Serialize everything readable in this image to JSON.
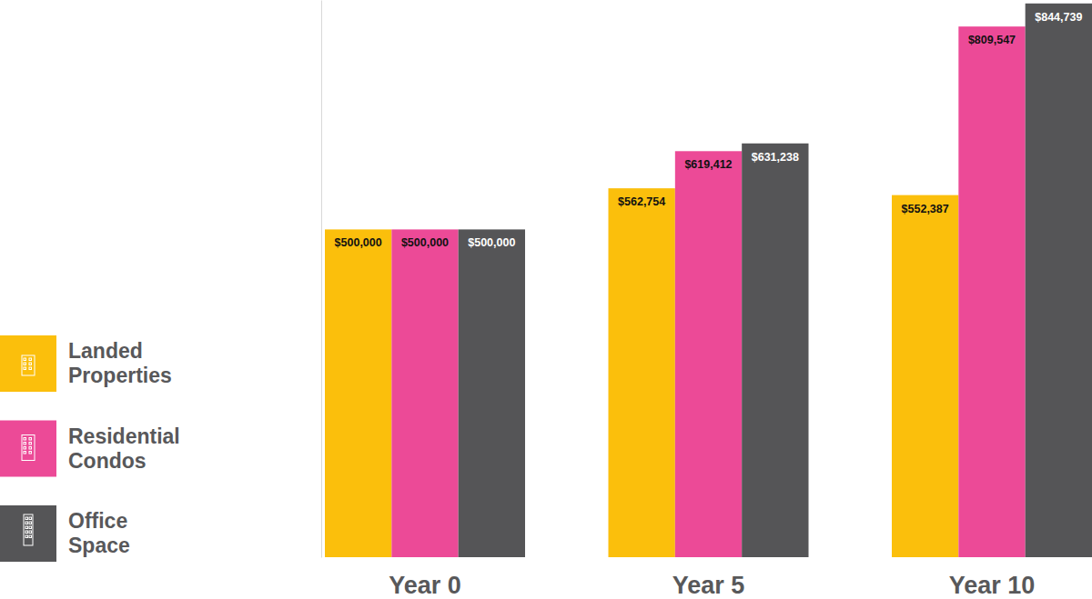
{
  "chart_data": {
    "type": "bar",
    "categories": [
      "Year 0",
      "Year 5",
      "Year 10"
    ],
    "series": [
      {
        "name": "Landed Properties",
        "color": "#fbbf0c",
        "values": [
          500000,
          562754,
          552387
        ],
        "value_labels": [
          "$500,000",
          "$562,754",
          "$552,387"
        ]
      },
      {
        "name": "Residential Condos",
        "color": "#ec4a97",
        "values": [
          500000,
          619412,
          809547
        ],
        "value_labels": [
          "$500,000",
          "$619,412",
          "$809,547"
        ]
      },
      {
        "name": "Office Space",
        "color": "#555557",
        "values": [
          500000,
          631238,
          844739
        ],
        "value_labels": [
          "$500,000",
          "$631,238",
          "$844,739"
        ]
      }
    ],
    "ylim": [
      0,
      850000
    ],
    "data_labels": true,
    "tick_labels": "x",
    "legend": "left"
  }
}
